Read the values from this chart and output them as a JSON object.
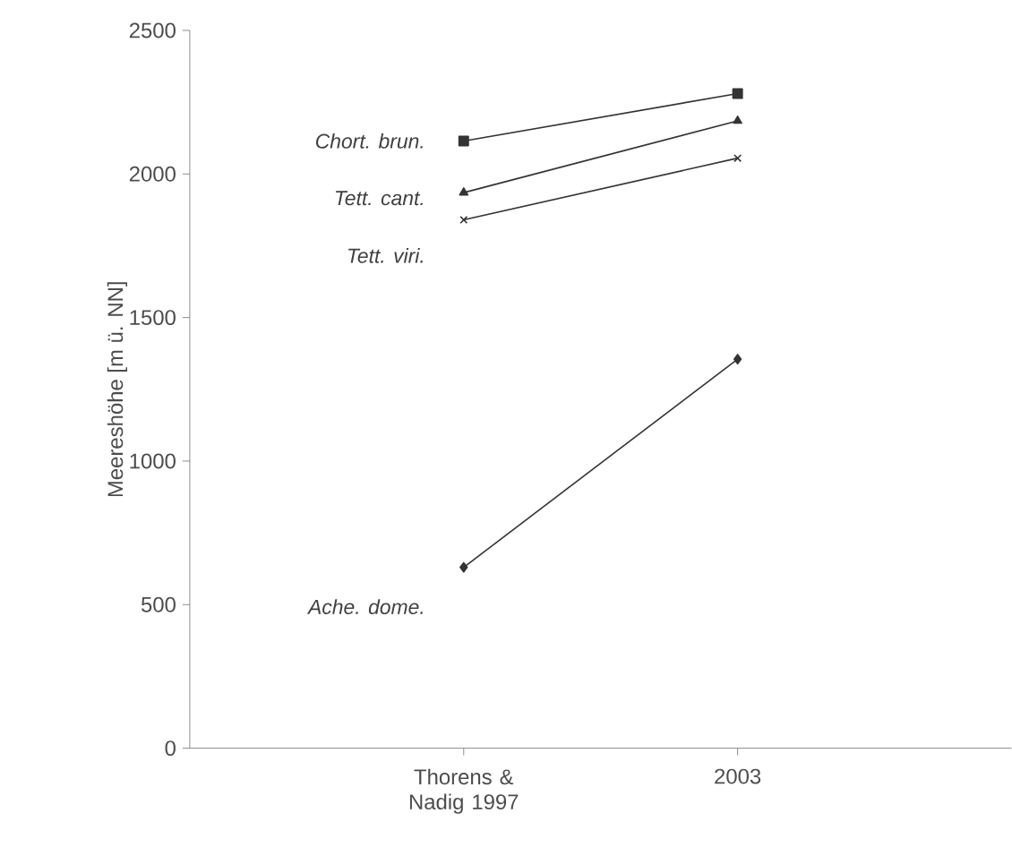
{
  "chart_data": {
    "type": "line",
    "ylabel": "Meereshöhe [m ü. NN]",
    "categories": [
      "Thorens & Nadig 1997",
      "2003"
    ],
    "series": [
      {
        "name": "Chort. brun.",
        "color": "#333333",
        "marker": "square",
        "values": [
          2115,
          2280
        ]
      },
      {
        "name": "Tett. cant.",
        "color": "#333333",
        "marker": "triangle",
        "values": [
          1935,
          2185
        ]
      },
      {
        "name": "Tett. viri.",
        "color": "#333333",
        "marker": "cross",
        "values": [
          1840,
          2055
        ]
      },
      {
        "name": "Ache. dome.",
        "color": "#333333",
        "marker": "diamond",
        "values": [
          630,
          1355
        ]
      }
    ],
    "ylim": [
      0,
      2500
    ],
    "yticks": [
      0,
      500,
      1000,
      1500,
      2000,
      2500
    ],
    "grid": false,
    "legend": false
  }
}
